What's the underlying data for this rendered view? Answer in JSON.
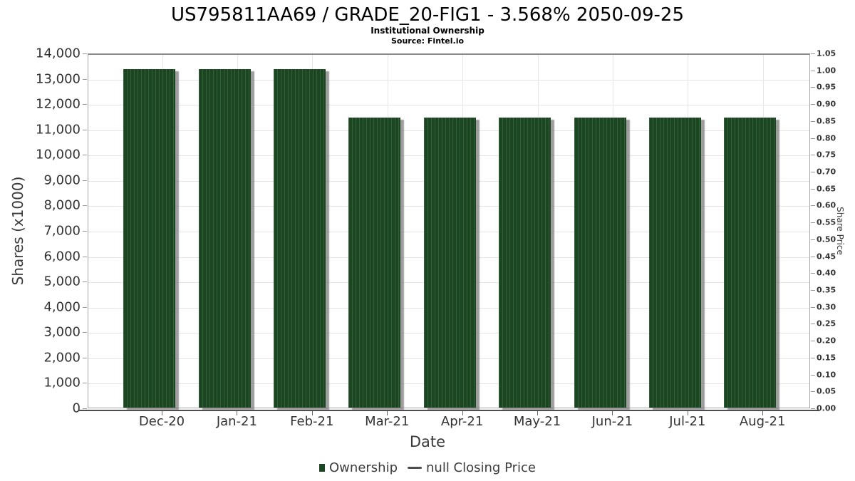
{
  "header": {
    "title": "US795811AA69 / GRADE_20-FIG1 - 3.568% 2050-09-25",
    "subtitle": "Institutional Ownership",
    "source": "Source: Fintel.io"
  },
  "chart_data": {
    "type": "bar",
    "title": "US795811AA69 / GRADE_20-FIG1 - 3.568% 2050-09-25",
    "subtitle": "Institutional Ownership",
    "source": "Source: Fintel.io",
    "categories": [
      "Dec-20",
      "Jan-21",
      "Feb-21",
      "Mar-21",
      "Apr-21",
      "May-21",
      "Jun-21",
      "Jul-21",
      "Aug-21"
    ],
    "series": [
      {
        "name": "Ownership",
        "type": "bar",
        "values": [
          13350,
          13350,
          13350,
          11450,
          11450,
          11450,
          11450,
          11450,
          11450
        ]
      },
      {
        "name": "null Closing Price",
        "type": "line",
        "values": []
      }
    ],
    "xlabel": "Date",
    "ylabel_left": "Shares (x1000)",
    "ylabel_right": "Share Price",
    "ylim_left": [
      0,
      14000
    ],
    "ylim_right": [
      0,
      1.05
    ],
    "left_ticks": [
      "0",
      "1,000",
      "2,000",
      "3,000",
      "4,000",
      "5,000",
      "6,000",
      "7,000",
      "8,000",
      "9,000",
      "10,000",
      "11,000",
      "12,000",
      "13,000",
      "14,000"
    ],
    "right_ticks": [
      "0.00",
      "0.05",
      "0.10",
      "0.15",
      "0.20",
      "0.25",
      "0.30",
      "0.35",
      "0.40",
      "0.45",
      "0.50",
      "0.55",
      "0.60",
      "0.65",
      "0.70",
      "0.75",
      "0.80",
      "0.85",
      "0.90",
      "0.95",
      "1.00",
      "1.05"
    ],
    "grid": true,
    "legend_position": "bottom",
    "bar_color": "#1c4522",
    "bar_stripe_color": "#33603a",
    "shadow_color": "#7d7d7d",
    "gridline_color": "#e4e4e4"
  },
  "legend": {
    "items": [
      {
        "label": "Ownership",
        "marker": "square",
        "color": "#1c4522"
      },
      {
        "label": "null Closing Price",
        "marker": "line",
        "color": "#4d4d4d"
      }
    ]
  }
}
